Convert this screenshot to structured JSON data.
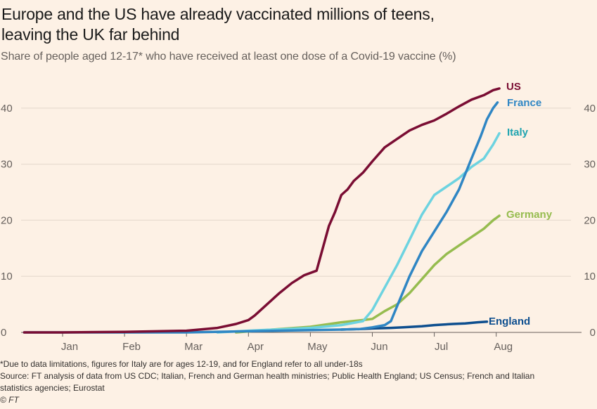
{
  "header": {
    "title_line1": "Europe and the US have already vaccinated millions of teens,",
    "title_line2": "leaving the UK far behind",
    "subtitle": "Share of people aged 12-17* who have received at least one dose of a Covid-19 vaccine (%)"
  },
  "footer": {
    "note": "*Due to data limitations, figures for Italy are for ages 12-19, and for England refer to all under-18s",
    "source_line1": "Source: FT analysis of data from US CDC; Italian, French and German health ministries; Public Health England; US Census; French and Italian",
    "source_line2": "statistics agencies; Eurostat",
    "copyright": "© FT"
  },
  "chart_data": {
    "type": "line",
    "title": "Europe and the US have already vaccinated millions of teens, leaving the UK far behind",
    "subtitle": "Share of people aged 12-17* who have received at least one dose of a Covid-19 vaccine (%)",
    "xlabel": "",
    "ylabel": "",
    "x_unit": "months since 1 Jan 2021 (Jan=0)",
    "xlim": [
      -0.62,
      8.3
    ],
    "ylim": [
      0,
      43
    ],
    "x_ticks": [
      0,
      1,
      2,
      3,
      4,
      5,
      6,
      7
    ],
    "x_tick_labels": [
      "Jan",
      "Feb",
      "Mar",
      "Apr",
      "May",
      "Jun",
      "Jul",
      "Aug"
    ],
    "y_ticks": [
      0,
      10,
      20,
      30,
      40
    ],
    "y_tick_labels": [
      "0",
      "10",
      "20",
      "30",
      "40"
    ],
    "y_axis_sides": [
      "left",
      "right"
    ],
    "grid": true,
    "legend": "direct labels at line ends (right)",
    "series": [
      {
        "name": "US",
        "color": "#7a0d33",
        "x": [
          -0.62,
          0,
          1,
          2,
          2.5,
          2.8,
          3.0,
          3.1,
          3.3,
          3.5,
          3.7,
          3.9,
          4.1,
          4.3,
          4.4,
          4.5,
          4.6,
          4.7,
          4.85,
          5.0,
          5.2,
          5.4,
          5.6,
          5.8,
          6.0,
          6.2,
          6.4,
          6.6,
          6.8,
          6.95,
          7.05
        ],
        "y": [
          0,
          0,
          0.1,
          0.3,
          0.8,
          1.5,
          2.2,
          3.0,
          5.0,
          7.0,
          8.8,
          10.2,
          11.0,
          19.0,
          21.5,
          24.5,
          25.5,
          27.0,
          28.5,
          30.5,
          33.0,
          34.5,
          36.0,
          37.0,
          37.8,
          39.0,
          40.3,
          41.5,
          42.3,
          43.2,
          43.5
        ]
      },
      {
        "name": "France",
        "color": "#2f86c4",
        "x": [
          -0.62,
          0,
          1,
          2,
          3,
          4,
          4.5,
          4.8,
          5.0,
          5.2,
          5.3,
          5.45,
          5.6,
          5.8,
          6.0,
          6.2,
          6.4,
          6.6,
          6.75,
          6.85,
          6.95,
          7.02
        ],
        "y": [
          0,
          0,
          0,
          0,
          0.2,
          0.4,
          0.5,
          0.6,
          0.9,
          1.3,
          2.0,
          6.0,
          10.0,
          14.5,
          18.0,
          21.5,
          25.5,
          31.0,
          35.0,
          38.0,
          40.0,
          41.0
        ]
      },
      {
        "name": "Italy",
        "color": "#6dd3e0",
        "x": [
          2.5,
          3.0,
          4.0,
          4.5,
          4.85,
          5.0,
          5.2,
          5.4,
          5.6,
          5.8,
          6.0,
          6.2,
          6.4,
          6.6,
          6.8,
          6.95,
          7.05
        ],
        "y": [
          0,
          0.3,
          0.8,
          1.3,
          2.0,
          4.0,
          8.0,
          12.0,
          16.5,
          21.0,
          24.5,
          26.0,
          27.5,
          29.5,
          31.0,
          33.5,
          35.5
        ]
      },
      {
        "name": "Germany",
        "color": "#96bc4f",
        "x": [
          2.8,
          3.5,
          4.0,
          4.5,
          4.85,
          5.0,
          5.2,
          5.4,
          5.6,
          5.8,
          6.0,
          6.2,
          6.4,
          6.6,
          6.8,
          6.95,
          7.05
        ],
        "y": [
          0,
          0.6,
          1.0,
          1.8,
          2.2,
          2.4,
          3.8,
          5.0,
          7.0,
          9.5,
          12.0,
          14.0,
          15.5,
          17.0,
          18.5,
          20.0,
          20.8
        ]
      },
      {
        "name": "England",
        "color": "#0e4f8f",
        "x": [
          4.5,
          4.8,
          5.0,
          5.3,
          5.5,
          5.8,
          6.0,
          6.3,
          6.5,
          6.7,
          6.85
        ],
        "y": [
          0.5,
          0.6,
          0.7,
          0.8,
          0.9,
          1.1,
          1.3,
          1.5,
          1.6,
          1.8,
          1.9
        ]
      }
    ]
  }
}
